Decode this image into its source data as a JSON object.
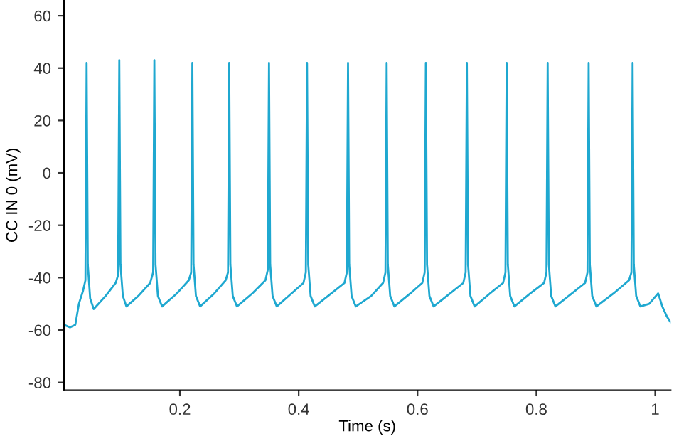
{
  "chart_data": {
    "type": "line",
    "xlabel": "Time (s)",
    "ylabel": "CC IN 0 (mV)",
    "series": [
      {
        "color": "#1fa8d0",
        "x": [
          0.005,
          0.015,
          0.024,
          0.03,
          0.037,
          0.041,
          0.043,
          0.045,
          0.049,
          0.055,
          0.075,
          0.092,
          0.096,
          0.098,
          0.1,
          0.104,
          0.11,
          0.13,
          0.15,
          0.155,
          0.157,
          0.159,
          0.163,
          0.17,
          0.195,
          0.215,
          0.219,
          0.221,
          0.223,
          0.227,
          0.234,
          0.258,
          0.277,
          0.281,
          0.283,
          0.285,
          0.289,
          0.296,
          0.322,
          0.344,
          0.348,
          0.35,
          0.352,
          0.356,
          0.363,
          0.388,
          0.408,
          0.412,
          0.414,
          0.416,
          0.42,
          0.427,
          0.455,
          0.477,
          0.481,
          0.483,
          0.485,
          0.489,
          0.496,
          0.522,
          0.542,
          0.546,
          0.548,
          0.55,
          0.554,
          0.561,
          0.588,
          0.608,
          0.612,
          0.614,
          0.616,
          0.62,
          0.627,
          0.655,
          0.677,
          0.681,
          0.683,
          0.685,
          0.689,
          0.696,
          0.722,
          0.744,
          0.748,
          0.75,
          0.752,
          0.756,
          0.763,
          0.79,
          0.813,
          0.817,
          0.819,
          0.821,
          0.825,
          0.832,
          0.86,
          0.882,
          0.886,
          0.888,
          0.89,
          0.894,
          0.901,
          0.93,
          0.956,
          0.96,
          0.962,
          0.964,
          0.968,
          0.975,
          0.99,
          1.005,
          1.012,
          1.02,
          1.026
        ],
        "values": [
          -58,
          -59,
          -58,
          -50,
          -45,
          -41,
          42,
          -35,
          -48,
          -52,
          -47,
          -42,
          -39,
          43,
          -35,
          -47,
          -51,
          -47,
          -42,
          -38,
          43,
          -35,
          -47,
          -51,
          -46,
          -41,
          -38,
          42,
          -35,
          -47,
          -51,
          -46,
          -41,
          -38,
          42,
          -35,
          -47,
          -51,
          -46,
          -41,
          -37,
          42,
          -35,
          -47,
          -51,
          -46,
          -42,
          -38,
          42,
          -35,
          -47,
          -51,
          -46,
          -42,
          -38,
          42,
          -35,
          -47,
          -51,
          -47,
          -42,
          -38,
          42,
          -35,
          -47,
          -51,
          -46,
          -42,
          -38,
          42,
          -35,
          -47,
          -51,
          -46,
          -42,
          -38,
          42,
          -35,
          -47,
          -51,
          -46,
          -42,
          -38,
          42,
          -35,
          -47,
          -51,
          -46,
          -42,
          -38,
          42,
          -35,
          -47,
          -51,
          -46,
          -42,
          -38,
          42,
          -35,
          -47,
          -51,
          -46,
          -41,
          -38,
          42,
          -35,
          -47,
          -51,
          -50,
          -46,
          -51,
          -55,
          -57
        ]
      }
    ],
    "xlim": [
      0.005,
      1.026
    ],
    "ylim": [
      -83,
      66
    ],
    "xticks": [
      0.2,
      0.4,
      0.6,
      0.8,
      {
        "value": 1,
        "label": "1"
      }
    ],
    "yticks": [
      -80,
      -60,
      -40,
      -20,
      0,
      20,
      40,
      60
    ],
    "grid": false,
    "legend": false,
    "marker": "none",
    "line_style": "solid"
  }
}
